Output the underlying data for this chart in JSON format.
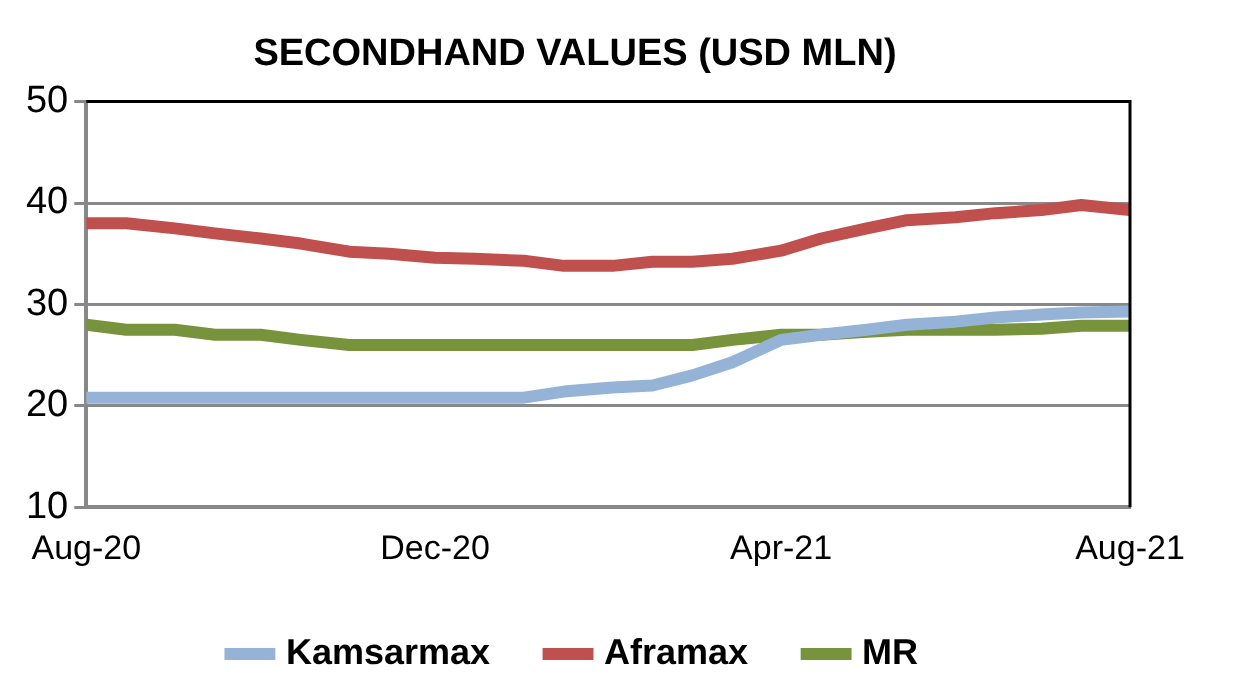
{
  "chart_data": {
    "type": "line",
    "title": "SECONDHAND VALUES (USD MLN)",
    "x": [
      "2020-08-01",
      "2020-08-15",
      "2020-09-01",
      "2020-09-15",
      "2020-10-01",
      "2020-10-15",
      "2020-11-01",
      "2020-11-15",
      "2020-12-01",
      "2020-12-15",
      "2021-01-01",
      "2021-01-15",
      "2021-02-01",
      "2021-02-15",
      "2021-03-01",
      "2021-03-15",
      "2021-04-01",
      "2021-04-15",
      "2021-05-01",
      "2021-05-15",
      "2021-06-01",
      "2021-06-15",
      "2021-07-01",
      "2021-07-15",
      "2021-08-01"
    ],
    "series": [
      {
        "name": "Kamsarmax",
        "color": "#95b3d7",
        "values": [
          20.8,
          20.8,
          20.8,
          20.8,
          20.8,
          20.8,
          20.8,
          20.8,
          20.8,
          20.8,
          20.8,
          21.4,
          21.8,
          22,
          23,
          24.3,
          26.5,
          27,
          27.5,
          28,
          28.3,
          28.7,
          29,
          29.2,
          29.3
        ]
      },
      {
        "name": "Aframax",
        "color": "#c0504d",
        "values": [
          38,
          38,
          37.5,
          37,
          36.5,
          36,
          35.2,
          35,
          34.6,
          34.5,
          34.3,
          33.8,
          33.8,
          34.2,
          34.2,
          34.5,
          35.3,
          36.5,
          37.5,
          38.3,
          38.6,
          39,
          39.3,
          39.8,
          39.3
        ]
      },
      {
        "name": "MR",
        "color": "#77933c",
        "values": [
          28,
          27.5,
          27.5,
          27,
          27,
          26.5,
          26,
          26,
          26,
          26,
          26,
          26,
          26,
          26,
          26,
          26.5,
          27,
          27,
          27.3,
          27.5,
          27.5,
          27.5,
          27.6,
          27.9,
          27.9
        ]
      }
    ],
    "xlim": [
      "2020-08-01",
      "2021-08-01"
    ],
    "xticks": [
      {
        "value": "2020-08-01",
        "label": "Aug-20"
      },
      {
        "value": "2020-12-01",
        "label": "Dec-20"
      },
      {
        "value": "2021-04-01",
        "label": "Apr-21"
      },
      {
        "value": "2021-08-01",
        "label": "Aug-21"
      }
    ],
    "ylim": [
      10,
      50
    ],
    "yticks": [
      10,
      20,
      30,
      40,
      50
    ],
    "grid": "y",
    "legend": "bottom",
    "marker": "none",
    "line_style": "solid"
  }
}
